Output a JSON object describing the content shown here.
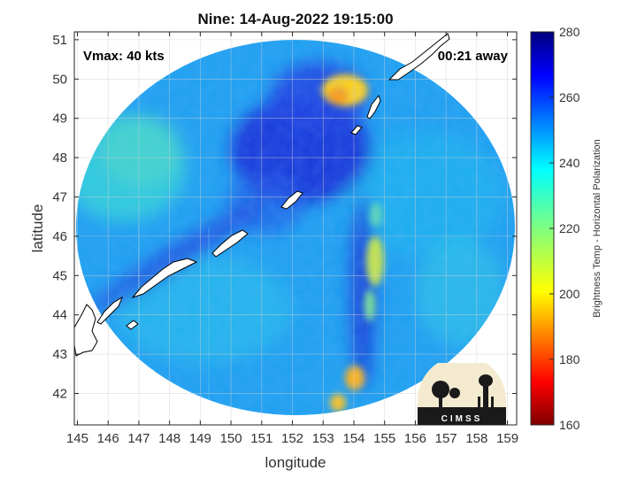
{
  "chart_data": {
    "type": "heatmap",
    "title": "Nine: 14-Aug-2022 19:15:00",
    "xlabel": "longitude",
    "ylabel": "latitude",
    "xlim": [
      144.9,
      159.3
    ],
    "ylim": [
      41.2,
      51.2
    ],
    "x_ticks": [
      145,
      146,
      147,
      148,
      149,
      150,
      151,
      152,
      153,
      154,
      155,
      156,
      157,
      158,
      159
    ],
    "y_ticks": [
      42,
      43,
      44,
      45,
      46,
      47,
      48,
      49,
      50,
      51
    ],
    "grid": true,
    "annotations": {
      "top_left": "Vmax: 40 kts",
      "top_right": "00:21 away"
    },
    "colorbar": {
      "label": "Brightness Temp - Horizontal Polarization",
      "min": 160,
      "max": 280,
      "ticks": [
        160,
        180,
        200,
        220,
        240,
        260,
        280
      ],
      "colormap": "jet"
    },
    "swath": {
      "center_lon": 152.1,
      "center_lat": 46.15,
      "background_value": 243,
      "features": [
        {
          "name": "cold spot north",
          "lon": 153.8,
          "lat": 49.6,
          "value": 195
        },
        {
          "name": "cold band east upper",
          "lon": 154.6,
          "lat": 46.3,
          "value": 232
        },
        {
          "name": "cold band east mid",
          "lon": 154.6,
          "lat": 45.3,
          "value": 215
        },
        {
          "name": "cold spot south",
          "lon": 154.1,
          "lat": 42.3,
          "value": 205
        },
        {
          "name": "cold spot south edge",
          "lon": 153.7,
          "lat": 41.8,
          "value": 205
        },
        {
          "name": "cold region northwest",
          "lon": 146.2,
          "lat": 48.2,
          "value": 232
        },
        {
          "name": "warm region center",
          "lon": 152.2,
          "lat": 48.1,
          "value": 262
        }
      ]
    }
  },
  "logo": {
    "text": "CIMSS",
    "colors": {
      "ground": "#1a1a1a",
      "sky": "#f4ead0",
      "text": "#ffffff"
    }
  },
  "colors": {
    "coastline": "#ffffff",
    "coast_edge": "#000000",
    "grid": "#d0d0d0"
  }
}
